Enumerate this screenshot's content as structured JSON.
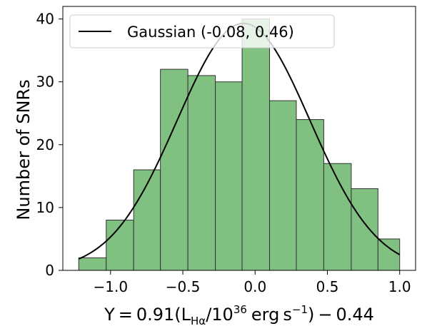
{
  "chart_data": {
    "type": "bar",
    "subtype": "histogram",
    "bins": [
      {
        "x0": -1.22,
        "x1": -1.03,
        "count": 2
      },
      {
        "x0": -1.03,
        "x1": -0.84,
        "count": 8
      },
      {
        "x0": -0.84,
        "x1": -0.655,
        "count": 16
      },
      {
        "x0": -0.655,
        "x1": -0.465,
        "count": 32
      },
      {
        "x0": -0.465,
        "x1": -0.275,
        "count": 31
      },
      {
        "x0": -0.275,
        "x1": -0.09,
        "count": 30
      },
      {
        "x0": -0.09,
        "x1": 0.1,
        "count": 40
      },
      {
        "x0": 0.1,
        "x1": 0.285,
        "count": 27
      },
      {
        "x0": 0.285,
        "x1": 0.475,
        "count": 24
      },
      {
        "x0": 0.475,
        "x1": 0.665,
        "count": 17
      },
      {
        "x0": 0.665,
        "x1": 0.85,
        "count": 13
      },
      {
        "x0": 0.85,
        "x1": 1.0,
        "count": 5
      }
    ],
    "bar_color": "#80c080",
    "bar_edge_color": "#333333",
    "series": [
      {
        "name": "Gaussian (-0.08, 0.46)",
        "type": "line",
        "mean": -0.08,
        "sigma": 0.46,
        "peak": 39.3,
        "x_range": [
          -1.22,
          1.0
        ],
        "color": "#000000"
      }
    ],
    "xlabel": "Y = 0.91(L_Hα/10^36 erg s^-1) − 0.44",
    "ylabel": "Number of SNRs",
    "xlim": [
      -1.33,
      1.11
    ],
    "ylim": [
      0,
      42
    ],
    "xticks": [
      -1.0,
      -0.5,
      0.0,
      0.5,
      1.0
    ],
    "xtick_labels": [
      "−1.0",
      "−0.5",
      "0.0",
      "0.5",
      "1.0"
    ],
    "yticks": [
      0,
      10,
      20,
      30,
      40
    ],
    "ytick_labels": [
      "0",
      "10",
      "20",
      "30",
      "40"
    ],
    "grid": false,
    "legend_position": "upper-left"
  }
}
